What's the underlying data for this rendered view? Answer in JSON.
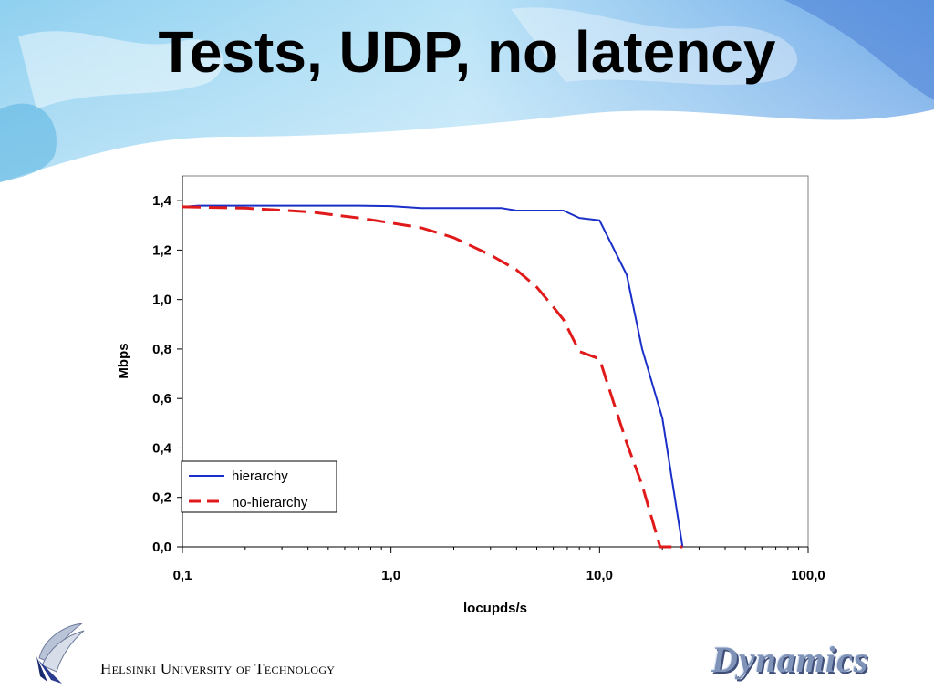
{
  "slide": {
    "title": "Tests, UDP, no latency",
    "footer": "Helsinki University of Technology",
    "logo_right": "Dynamics"
  },
  "colors": {
    "hierarchy": "#1a2fc8",
    "no_hierarchy": "#e01a1a",
    "decor_blue": "#6fb7e8"
  },
  "chart_data": {
    "type": "line",
    "xscale": "log",
    "xlabel": "locupds/s",
    "ylabel": "Mbps",
    "xlim": [
      0.1,
      100
    ],
    "ylim": [
      0,
      1.5
    ],
    "x_ticks": [
      0.1,
      1,
      10,
      100
    ],
    "x_tick_labels": [
      "0,1",
      "1,0",
      "10,0",
      "100,0"
    ],
    "y_ticks": [
      0,
      0.2,
      0.4,
      0.6,
      0.8,
      1.0,
      1.2,
      1.4
    ],
    "y_tick_labels": [
      "0,0",
      "0,2",
      "0,4",
      "0,6",
      "0,8",
      "1,0",
      "1,2",
      "1,4"
    ],
    "grid": false,
    "legend_position": "bottom-left",
    "series": [
      {
        "name": "hierarchy",
        "style": "solid",
        "x": [
          0.1,
          0.12,
          0.2,
          0.4,
          0.7,
          1.0,
          1.4,
          2.0,
          3.4,
          4.0,
          6.7,
          8.0,
          10.0,
          13.5,
          16,
          20,
          25
        ],
        "y": [
          1.375,
          1.38,
          1.38,
          1.38,
          1.38,
          1.378,
          1.37,
          1.37,
          1.37,
          1.36,
          1.36,
          1.33,
          1.32,
          1.1,
          0.8,
          0.52,
          0.0
        ]
      },
      {
        "name": "no-hierarchy",
        "style": "dashed",
        "x": [
          0.1,
          0.2,
          0.4,
          0.7,
          1.0,
          1.4,
          2.0,
          3.0,
          4.0,
          5.0,
          6.0,
          6.7,
          8.0,
          10.0,
          13.5,
          16,
          19.5,
          25
        ],
        "y": [
          1.375,
          1.37,
          1.355,
          1.33,
          1.31,
          1.29,
          1.25,
          1.18,
          1.12,
          1.05,
          0.97,
          0.92,
          0.79,
          0.76,
          0.42,
          0.25,
          0.0,
          0.0
        ]
      }
    ]
  }
}
